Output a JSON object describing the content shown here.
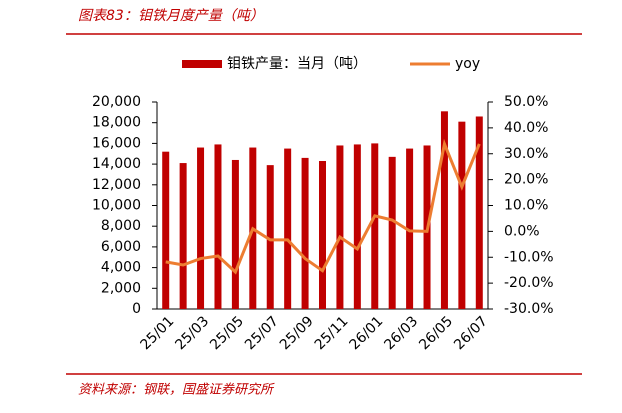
{
  "header": {
    "title": "图表83：钼铁月度产量（吨）"
  },
  "chart_data": {
    "type": "bar-line",
    "categories": [
      "25/01",
      null,
      "25/03",
      null,
      "25/05",
      null,
      "25/07",
      null,
      "25/09",
      null,
      "25/11",
      null,
      "26/01",
      null,
      "26/03",
      null,
      "26/05",
      null,
      "26/07"
    ],
    "series": [
      {
        "name": "钼铁产量：当月（吨）",
        "type": "bar",
        "color": "#c00000",
        "values": [
          15200,
          14100,
          15600,
          15900,
          14400,
          15600,
          13900,
          15500,
          14600,
          14300,
          15800,
          15900,
          16000,
          14700,
          15500,
          15800,
          19100,
          18100,
          18600
        ]
      },
      {
        "name": "yoy",
        "type": "line",
        "axis": "y2",
        "color": "#ed7d31",
        "values": [
          -11.8,
          -13,
          -10.5,
          -9.5,
          -15.7,
          1,
          -3.3,
          -3.3,
          -10.5,
          -15.2,
          -2.2,
          -6.8,
          6,
          4.4,
          0.2,
          0,
          33.8,
          17.2,
          33.8
        ]
      }
    ],
    "ylim": [
      0,
      20000
    ],
    "yticks": [
      0,
      {
        "value": 2000,
        "label": "2,000"
      },
      {
        "value": 4000,
        "label": "4,000"
      },
      {
        "value": 6000,
        "label": "6,000"
      },
      {
        "value": 8000,
        "label": "8,000"
      },
      {
        "value": 10000,
        "label": "10,000"
      },
      {
        "value": 12000,
        "label": "12,000"
      },
      {
        "value": 14000,
        "label": "14,000"
      },
      {
        "value": 16000,
        "label": "16,000"
      },
      {
        "value": 18000,
        "label": "18,000"
      },
      {
        "value": 20000,
        "label": "20,000"
      }
    ],
    "y2lim": [
      -30,
      50
    ],
    "y2ticks": [
      {
        "value": -30,
        "label": "-30.0%"
      },
      {
        "value": -20,
        "label": "-20.0%"
      },
      {
        "value": -10,
        "label": "-10.0%"
      },
      {
        "value": 0,
        "label": "0.0%"
      },
      {
        "value": 10,
        "label": "10.0%"
      },
      {
        "value": 20,
        "label": "20.0%"
      },
      {
        "value": 30,
        "label": "30.0%"
      },
      {
        "value": 40,
        "label": "40.0%"
      },
      {
        "value": 50,
        "label": "50.0%"
      }
    ],
    "legend": "top"
  },
  "footer": {
    "source": "资料来源：钢联，国盛证券研究所"
  }
}
